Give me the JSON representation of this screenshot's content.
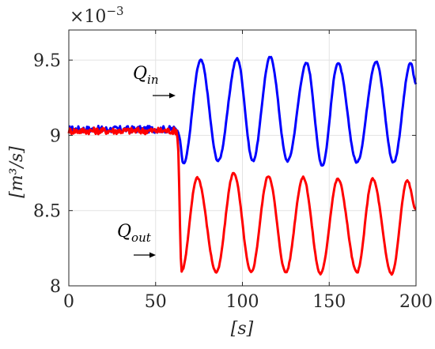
{
  "chart_data": {
    "type": "line",
    "title": "",
    "xlabel": "[s]",
    "ylabel": "[m³/s]",
    "y_multiplier": "×10",
    "y_multiplier_exp": "−3",
    "xlim": [
      0,
      200
    ],
    "ylim": [
      8.0,
      9.7
    ],
    "x_ticks": [
      0,
      50,
      100,
      150,
      200
    ],
    "x_tick_labels": [
      "0",
      "50",
      "100",
      "150",
      "200"
    ],
    "y_ticks": [
      8.0,
      8.5,
      9.0,
      9.5
    ],
    "y_tick_labels": [
      "8",
      "8.5",
      "9",
      "9.5"
    ],
    "grid": true,
    "series": [
      {
        "name": "Qin",
        "label_main": "Q",
        "label_sub": "in",
        "color": "#0000ff",
        "steady_value": 9.04,
        "step_time": 63,
        "oscillation": {
          "mean": 9.165,
          "amplitude": 0.345,
          "period": 20.0,
          "first_trough": [
            64.5,
            8.8
          ],
          "peaks": [
            [
              76,
              9.5
            ],
            [
              97,
              9.51
            ],
            [
              116,
              9.52
            ],
            [
              137,
              9.48
            ],
            [
              155,
              9.48
            ],
            [
              177,
              9.49
            ],
            [
              197,
              9.48
            ]
          ],
          "troughs": [
            [
              66,
              8.81
            ],
            [
              86,
              8.83
            ],
            [
              106,
              8.83
            ],
            [
              126,
              8.83
            ],
            [
              146,
              8.8
            ],
            [
              166,
              8.82
            ],
            [
              187,
              8.82
            ]
          ],
          "end_value": 9.34
        }
      },
      {
        "name": "Qout",
        "label_main": "Q",
        "label_sub": "out",
        "color": "#ff0000",
        "steady_value": 9.03,
        "step_time": 62,
        "oscillation": {
          "mean": 8.41,
          "amplitude": 0.33,
          "period": 20.0,
          "first_trough": [
            65,
            8.1
          ],
          "peaks": [
            [
              74,
              8.72
            ],
            [
              95,
              8.75
            ],
            [
              115,
              8.73
            ],
            [
              135,
              8.72
            ],
            [
              155,
              8.71
            ],
            [
              175,
              8.71
            ],
            [
              195,
              8.7
            ]
          ],
          "troughs": [
            [
              65,
              8.1
            ],
            [
              85,
              8.09
            ],
            [
              105,
              8.09
            ],
            [
              125,
              8.09
            ],
            [
              145,
              8.08
            ],
            [
              166,
              8.09
            ],
            [
              186,
              8.08
            ]
          ],
          "end_value": 8.51
        }
      }
    ]
  }
}
